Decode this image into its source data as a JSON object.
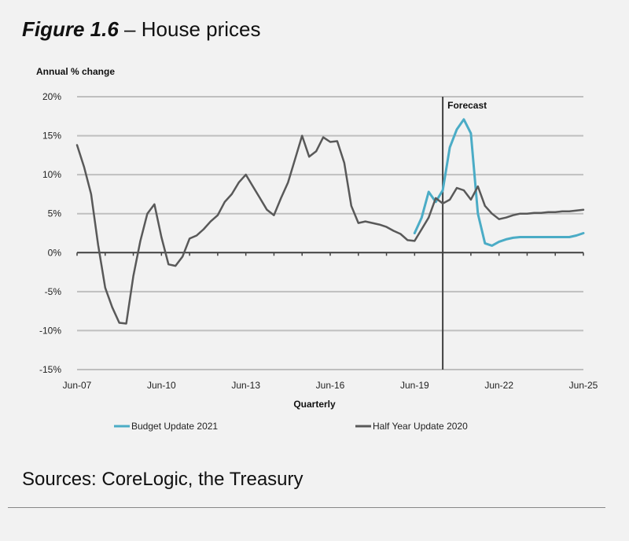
{
  "figure_label": "Figure 1.6",
  "figure_title": "House prices",
  "source": "Sources: CoreLogic, the Treasury",
  "colors": {
    "budget": "#4bacc6",
    "hyu": "#595959",
    "grid": "#bfbfbf",
    "axis": "#404040"
  },
  "chart_data": {
    "type": "line",
    "title": "",
    "ylabel": "Annual % change",
    "xlabel": "Quarterly",
    "ylim": [
      -15,
      20
    ],
    "yticks": [
      "20%",
      "15%",
      "10%",
      "5%",
      "0%",
      "-5%",
      "-10%",
      "-15%"
    ],
    "xtick_labels": [
      "Jun-07",
      "Jun-10",
      "Jun-13",
      "Jun-16",
      "Jun-19",
      "Jun-22",
      "Jun-25"
    ],
    "x_range": [
      "Jun-07",
      "Jun-25"
    ],
    "annotations": [
      {
        "text": "Forecast",
        "at": "Jun-20"
      }
    ],
    "grid": true,
    "legend_position": "bottom",
    "series": [
      {
        "name": "Budget Update 2021",
        "color": "#4bacc6",
        "x": [
          "Jun-19",
          "Sep-19",
          "Dec-19",
          "Mar-20",
          "Jun-20",
          "Sep-20",
          "Dec-20",
          "Mar-21",
          "Jun-21",
          "Sep-21",
          "Dec-21",
          "Mar-22",
          "Jun-22",
          "Sep-22",
          "Dec-22",
          "Mar-23",
          "Jun-23",
          "Sep-23",
          "Dec-23",
          "Mar-24",
          "Jun-24",
          "Sep-24",
          "Dec-24",
          "Mar-25",
          "Jun-25"
        ],
        "y": [
          2.5,
          4.5,
          7.8,
          6.5,
          8.0,
          13.5,
          15.8,
          17.1,
          15.3,
          5.0,
          1.2,
          0.9,
          1.4,
          1.7,
          1.9,
          2.0,
          2.0,
          2.0,
          2.0,
          2.0,
          2.0,
          2.0,
          2.0,
          2.2,
          2.5
        ]
      },
      {
        "name": "Half Year Update 2020",
        "color": "#595959",
        "x": [
          "Jun-07",
          "Sep-07",
          "Dec-07",
          "Mar-08",
          "Jun-08",
          "Sep-08",
          "Dec-08",
          "Mar-09",
          "Jun-09",
          "Sep-09",
          "Dec-09",
          "Mar-10",
          "Jun-10",
          "Sep-10",
          "Dec-10",
          "Mar-11",
          "Jun-11",
          "Sep-11",
          "Dec-11",
          "Mar-12",
          "Jun-12",
          "Sep-12",
          "Dec-12",
          "Mar-13",
          "Jun-13",
          "Sep-13",
          "Dec-13",
          "Mar-14",
          "Jun-14",
          "Sep-14",
          "Dec-14",
          "Mar-15",
          "Jun-15",
          "Sep-15",
          "Dec-15",
          "Mar-16",
          "Jun-16",
          "Sep-16",
          "Dec-16",
          "Mar-17",
          "Jun-17",
          "Sep-17",
          "Dec-17",
          "Mar-18",
          "Jun-18",
          "Sep-18",
          "Dec-18",
          "Mar-19",
          "Jun-19",
          "Sep-19",
          "Dec-19",
          "Mar-20",
          "Jun-20",
          "Sep-20",
          "Dec-20",
          "Mar-21",
          "Jun-21",
          "Sep-21",
          "Dec-21",
          "Mar-22",
          "Jun-22",
          "Sep-22",
          "Dec-22",
          "Mar-23",
          "Jun-23",
          "Sep-23",
          "Dec-23",
          "Mar-24",
          "Jun-24",
          "Sep-24",
          "Dec-24",
          "Mar-25",
          "Jun-25"
        ],
        "y": [
          13.8,
          11.0,
          7.5,
          1.0,
          -4.5,
          -7.0,
          -9.0,
          -9.1,
          -3.0,
          1.5,
          5.0,
          6.2,
          2.0,
          -1.5,
          -1.7,
          -0.5,
          1.8,
          2.2,
          3.0,
          4.0,
          4.8,
          6.5,
          7.5,
          9.0,
          10.0,
          8.5,
          7.0,
          5.5,
          4.8,
          7.0,
          9.0,
          12.0,
          15.0,
          12.3,
          13.0,
          14.8,
          14.2,
          14.3,
          11.5,
          6.0,
          3.8,
          4.0,
          3.8,
          3.6,
          3.3,
          2.8,
          2.4,
          1.6,
          1.5,
          3.0,
          4.5,
          7.0,
          6.3,
          6.8,
          8.3,
          8.0,
          6.8,
          8.5,
          6.0,
          5.0,
          4.3,
          4.5,
          4.8,
          5.0,
          5.0,
          5.1,
          5.1,
          5.2,
          5.2,
          5.3,
          5.3,
          5.4,
          5.5
        ]
      }
    ]
  }
}
